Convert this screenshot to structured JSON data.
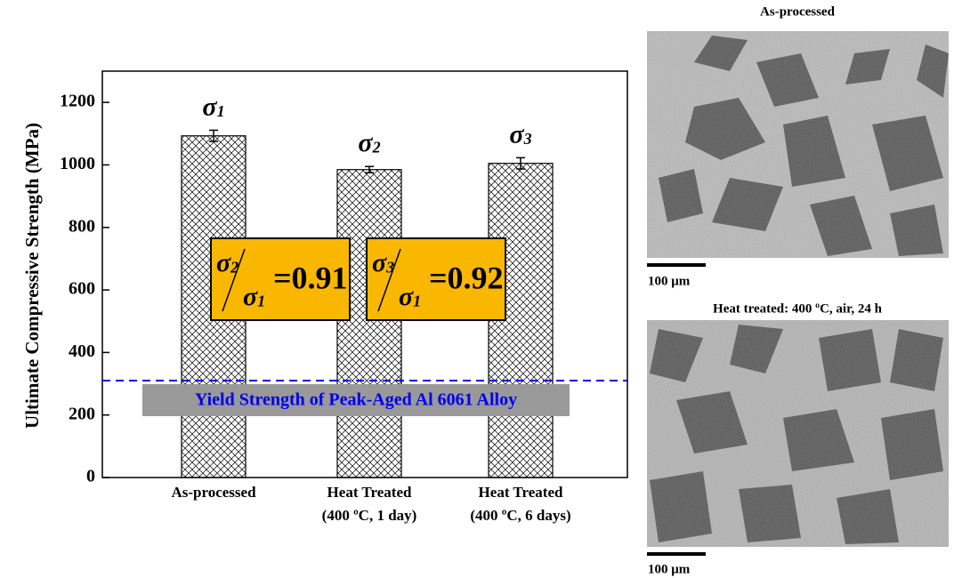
{
  "chart_data": {
    "type": "bar",
    "ylabel": "Ultimate Compressive Strength (MPa)",
    "categories": [
      "As-processed",
      "Heat Treated\n(400 ºC, 1 day)",
      "Heat Treated\n(400 ºC, 6 days)"
    ],
    "values": [
      1093,
      985,
      1005
    ],
    "errors": [
      18,
      10,
      18
    ],
    "color": "#000000",
    "bar_labels": [
      [
        "σ",
        "1"
      ],
      [
        "σ",
        "2"
      ],
      [
        "σ",
        "3"
      ]
    ],
    "ylim": [
      0,
      1300
    ],
    "yticks": [
      0,
      200,
      400,
      600,
      800,
      1000,
      1200
    ],
    "reference_line": {
      "value": 310,
      "label": "Yield Strength of Peak-Aged Al 6061 Alloy",
      "color": "#0000ee"
    },
    "ratios": [
      {
        "numerator": [
          "σ",
          "2"
        ],
        "denominator": [
          "σ",
          "1"
        ],
        "result": "=0.91"
      },
      {
        "numerator": [
          "σ",
          "3"
        ],
        "denominator": [
          "σ",
          "1"
        ],
        "result": "=0.92"
      }
    ]
  },
  "micrographs": [
    {
      "title": "As-processed",
      "scale_bar": "100 μm"
    },
    {
      "title": "Heat treated: 400 ºC, air, 24 h",
      "scale_bar": "100 μm"
    }
  ]
}
